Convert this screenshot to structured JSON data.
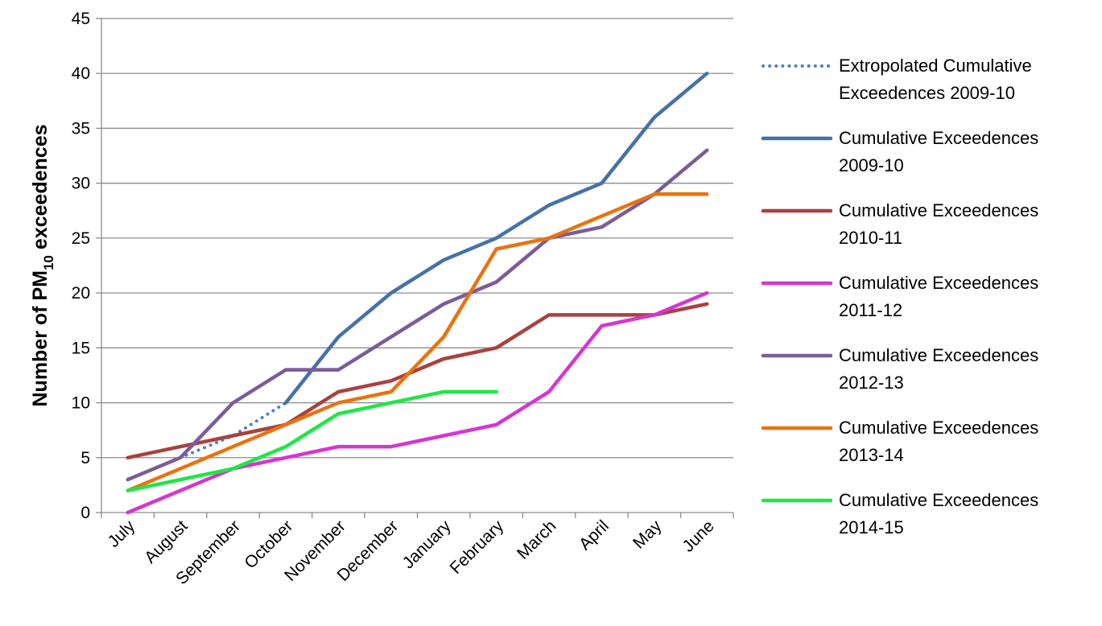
{
  "chart_data": {
    "type": "line",
    "title": "",
    "xlabel": "",
    "ylabel": {
      "prefix": "Number of PM",
      "subscript": "10",
      "suffix": " exceedences"
    },
    "categories": [
      "July",
      "August",
      "September",
      "October",
      "November",
      "December",
      "January",
      "February",
      "March",
      "April",
      "May",
      "June"
    ],
    "ylim": [
      0,
      45
    ],
    "yticks": [
      0,
      5,
      10,
      15,
      20,
      25,
      30,
      35,
      40,
      45
    ],
    "grid": true,
    "legend_position": "right",
    "series": [
      {
        "name_lines": [
          "Extropolated Cumulative",
          "Exceedences 2009-10"
        ],
        "color": "#4F81BD",
        "dashed": true,
        "values": [
          null,
          5,
          7,
          10,
          null,
          null,
          null,
          null,
          null,
          null,
          null,
          null
        ]
      },
      {
        "name_lines": [
          "Cumulative Exceedences",
          "2009-10"
        ],
        "color": "#4572A7",
        "dashed": false,
        "values": [
          null,
          null,
          null,
          10,
          16,
          20,
          23,
          25,
          28,
          30,
          36,
          40
        ]
      },
      {
        "name_lines": [
          "Cumulative Exceedences",
          "2010-11"
        ],
        "color": "#A8423F",
        "dashed": false,
        "values": [
          5,
          6,
          7,
          8,
          11,
          12,
          14,
          15,
          18,
          18,
          18,
          19
        ]
      },
      {
        "name_lines": [
          "Cumulative Exceedences",
          "2011-12"
        ],
        "color": "#D536D0",
        "dashed": false,
        "values": [
          0,
          2,
          4,
          5,
          6,
          6,
          7,
          8,
          11,
          17,
          18,
          20
        ]
      },
      {
        "name_lines": [
          "Cumulative Exceedences",
          "2012-13"
        ],
        "color": "#7B5C99",
        "dashed": false,
        "values": [
          3,
          5,
          10,
          13,
          13,
          16,
          19,
          21,
          25,
          26,
          29,
          33
        ]
      },
      {
        "name_lines": [
          "Cumulative Exceedences",
          "2013-14"
        ],
        "color": "#E9730F",
        "dashed": false,
        "values": [
          2,
          4,
          6,
          8,
          10,
          11,
          16,
          24,
          25,
          27,
          29,
          29
        ]
      },
      {
        "name_lines": [
          "Cumulative Exceedences",
          "2014-15"
        ],
        "color": "#1EE745",
        "dashed": false,
        "values": [
          2,
          3,
          4,
          6,
          9,
          10,
          11,
          11,
          null,
          null,
          null,
          null
        ]
      }
    ]
  }
}
